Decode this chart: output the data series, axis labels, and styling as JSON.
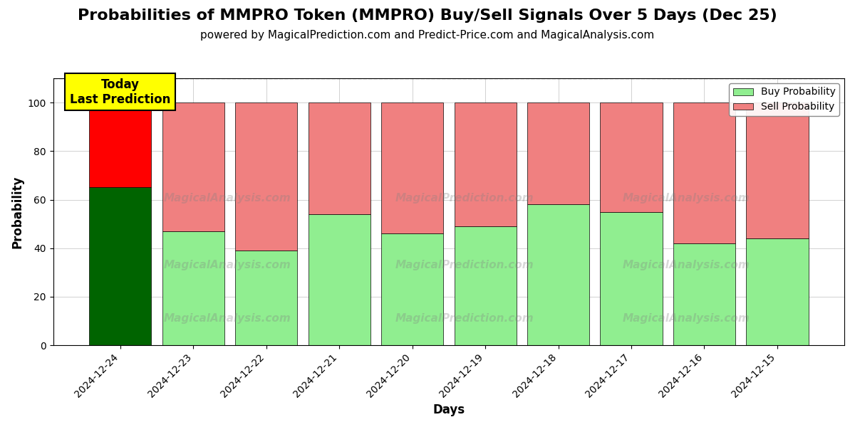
{
  "title": "Probabilities of MMPRO Token (MMPRO) Buy/Sell Signals Over 5 Days (Dec 25)",
  "subtitle": "powered by MagicalPrediction.com and Predict-Price.com and MagicalAnalysis.com",
  "xlabel": "Days",
  "ylabel": "Probability",
  "days": [
    "2024-12-24",
    "2024-12-23",
    "2024-12-22",
    "2024-12-21",
    "2024-12-20",
    "2024-12-19",
    "2024-12-18",
    "2024-12-17",
    "2024-12-16",
    "2024-12-15"
  ],
  "buy_values": [
    65,
    47,
    39,
    54,
    46,
    49,
    58,
    55,
    42,
    44
  ],
  "sell_values": [
    35,
    53,
    61,
    46,
    54,
    51,
    42,
    45,
    58,
    56
  ],
  "today_buy_color": "#006400",
  "today_sell_color": "#FF0000",
  "buy_color": "#90EE90",
  "sell_color": "#F08080",
  "today_label_bg": "#FFFF00",
  "today_label_text": "Today\nLast Prediction",
  "legend_buy": "Buy Probability",
  "legend_sell": "Sell Probability",
  "ylim": [
    0,
    110
  ],
  "yticks": [
    0,
    20,
    40,
    60,
    80,
    100
  ],
  "dashed_line_y": 110,
  "bar_width": 0.85,
  "figsize": [
    12,
    6
  ],
  "dpi": 100,
  "title_fontsize": 16,
  "subtitle_fontsize": 11,
  "axis_label_fontsize": 12,
  "tick_fontsize": 10,
  "legend_fontsize": 10
}
